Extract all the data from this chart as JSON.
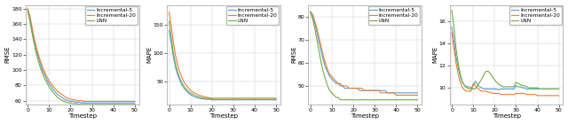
{
  "timesteps": [
    0,
    1,
    2,
    3,
    4,
    5,
    6,
    7,
    8,
    9,
    10,
    11,
    12,
    13,
    14,
    15,
    16,
    17,
    18,
    19,
    20,
    21,
    22,
    23,
    24,
    25,
    26,
    27,
    28,
    29,
    30,
    31,
    32,
    33,
    34,
    35,
    36,
    37,
    38,
    39,
    40,
    41,
    42,
    43,
    44,
    45,
    46,
    47,
    48,
    49,
    50
  ],
  "plot_a": {
    "ylabel": "RMSE",
    "xlabel": "Timestep",
    "ylim": [
      55,
      185
    ],
    "yticks": [
      60,
      80,
      100,
      120,
      140,
      160,
      180
    ],
    "inc5": [
      179,
      168,
      152,
      138,
      126,
      116,
      107,
      99,
      93,
      87,
      82,
      78,
      74,
      71,
      68,
      66,
      64,
      62,
      61,
      60,
      59,
      59,
      58,
      58,
      58,
      57,
      57,
      57,
      57,
      57,
      57,
      57,
      57,
      57,
      57,
      57,
      57,
      57,
      57,
      57,
      57,
      57,
      57,
      57,
      57,
      57,
      57,
      57,
      57,
      57,
      57
    ],
    "inc20": [
      180,
      171,
      156,
      142,
      130,
      120,
      111,
      103,
      97,
      91,
      86,
      82,
      78,
      75,
      72,
      70,
      68,
      66,
      64,
      63,
      62,
      61,
      61,
      60,
      60,
      60,
      59,
      59,
      59,
      59,
      59,
      59,
      59,
      59,
      59,
      59,
      59,
      59,
      59,
      59,
      59,
      59,
      59,
      59,
      59,
      59,
      59,
      59,
      59,
      59,
      59
    ],
    "lnn": [
      178,
      164,
      148,
      134,
      121,
      111,
      102,
      95,
      88,
      83,
      78,
      74,
      70,
      67,
      64,
      62,
      60,
      59,
      58,
      57,
      57,
      56,
      56,
      56,
      55,
      55,
      55,
      55,
      55,
      55,
      55,
      55,
      55,
      55,
      55,
      55,
      55,
      55,
      55,
      55,
      55,
      55,
      55,
      55,
      55,
      55,
      55,
      55,
      55,
      55,
      55
    ]
  },
  "plot_b": {
    "ylabel": "MAPE",
    "xlabel": "Timestep",
    "ylim": [
      10,
      185
    ],
    "yticks": [
      50,
      100,
      150
    ],
    "inc5": [
      140,
      118,
      93,
      75,
      62,
      52,
      44,
      38,
      34,
      30,
      27,
      25,
      23,
      22,
      21,
      20,
      20,
      19,
      19,
      19,
      18,
      18,
      18,
      18,
      18,
      18,
      18,
      18,
      18,
      18,
      18,
      18,
      18,
      18,
      18,
      18,
      18,
      18,
      18,
      18,
      18,
      18,
      18,
      18,
      18,
      18,
      18,
      18,
      18,
      18,
      18
    ],
    "inc20": [
      172,
      148,
      118,
      96,
      79,
      67,
      57,
      49,
      44,
      39,
      35,
      32,
      30,
      28,
      26,
      25,
      24,
      23,
      22,
      22,
      21,
      21,
      21,
      21,
      21,
      21,
      21,
      21,
      21,
      21,
      21,
      21,
      21,
      21,
      21,
      21,
      21,
      21,
      21,
      21,
      21,
      21,
      21,
      21,
      21,
      21,
      21,
      21,
      21,
      21,
      21
    ],
    "lnn": [
      156,
      128,
      100,
      81,
      67,
      56,
      48,
      42,
      37,
      33,
      30,
      28,
      26,
      24,
      23,
      22,
      21,
      21,
      20,
      20,
      19,
      19,
      19,
      19,
      19,
      19,
      19,
      19,
      19,
      19,
      19,
      19,
      19,
      19,
      19,
      19,
      19,
      19,
      19,
      19,
      19,
      19,
      19,
      19,
      19,
      19,
      19,
      19,
      19,
      19,
      19
    ]
  },
  "plot_c": {
    "ylabel": "RMSE",
    "xlabel": "Timestep",
    "ylim": [
      42,
      85
    ],
    "yticks": [
      50,
      60,
      70,
      80
    ],
    "inc5": [
      82,
      80,
      77,
      73,
      69,
      65,
      61,
      58,
      56,
      54,
      53,
      52,
      51,
      51,
      50,
      50,
      49,
      49,
      49,
      49,
      49,
      49,
      49,
      48,
      48,
      48,
      48,
      48,
      48,
      48,
      48,
      48,
      48,
      48,
      48,
      48,
      47,
      47,
      47,
      47,
      47,
      47,
      47,
      47,
      47,
      47,
      47,
      47,
      47,
      47,
      47
    ],
    "inc20": [
      82,
      81,
      78,
      75,
      71,
      67,
      63,
      60,
      57,
      55,
      54,
      53,
      52,
      51,
      51,
      50,
      50,
      50,
      49,
      49,
      49,
      49,
      49,
      49,
      49,
      48,
      48,
      48,
      48,
      48,
      48,
      48,
      48,
      47,
      47,
      47,
      47,
      47,
      47,
      47,
      46,
      46,
      46,
      46,
      46,
      46,
      46,
      46,
      46,
      46,
      46
    ],
    "lnn": [
      82,
      79,
      75,
      70,
      65,
      60,
      56,
      53,
      50,
      48,
      47,
      46,
      45,
      45,
      44,
      44,
      44,
      44,
      44,
      44,
      44,
      44,
      44,
      44,
      44,
      44,
      44,
      44,
      44,
      44,
      44,
      44,
      44,
      44,
      44,
      44,
      44,
      44,
      44,
      44,
      44,
      44,
      44,
      44,
      44,
      44,
      44,
      44,
      44,
      44,
      44
    ]
  },
  "plot_d": {
    "ylabel": "MAPE",
    "xlabel": "Timestep",
    "ylim": [
      8.5,
      17.5
    ],
    "yticks": [
      10,
      12,
      14,
      16
    ],
    "inc5": [
      15.5,
      14.2,
      12.8,
      11.8,
      11.0,
      10.5,
      10.2,
      10.1,
      10.1,
      10.0,
      10.2,
      10.6,
      10.3,
      10.1,
      10.0,
      9.9,
      9.9,
      9.9,
      9.9,
      9.9,
      9.9,
      9.9,
      9.8,
      9.9,
      9.9,
      9.9,
      9.9,
      9.9,
      9.9,
      9.9,
      10.2,
      10.1,
      10.1,
      10.0,
      10.0,
      9.9,
      9.9,
      9.9,
      9.9,
      9.9,
      9.9,
      9.9,
      9.9,
      9.9,
      9.9,
      9.9,
      9.9,
      9.9,
      9.9,
      9.9,
      9.9
    ],
    "inc20": [
      15.0,
      13.5,
      12.2,
      11.2,
      10.5,
      10.0,
      9.8,
      9.7,
      9.7,
      9.7,
      10.4,
      10.2,
      10.0,
      9.8,
      9.7,
      9.7,
      9.7,
      9.6,
      9.6,
      9.5,
      9.5,
      9.5,
      9.5,
      9.4,
      9.4,
      9.4,
      9.4,
      9.4,
      9.4,
      9.4,
      9.5,
      9.5,
      9.5,
      9.5,
      9.5,
      9.4,
      9.4,
      9.4,
      9.4,
      9.4,
      9.3,
      9.3,
      9.3,
      9.3,
      9.3,
      9.3,
      9.3,
      9.3,
      9.3,
      9.3,
      9.3
    ],
    "lnn": [
      17.0,
      15.5,
      13.5,
      12.2,
      11.2,
      10.5,
      10.2,
      10.0,
      9.9,
      9.9,
      9.9,
      9.9,
      10.2,
      10.5,
      10.8,
      11.2,
      11.5,
      11.5,
      11.3,
      11.0,
      10.7,
      10.5,
      10.3,
      10.2,
      10.1,
      10.1,
      10.1,
      10.1,
      10.1,
      10.1,
      10.5,
      10.4,
      10.3,
      10.2,
      10.2,
      10.1,
      10.0,
      10.0,
      10.0,
      10.0,
      10.0,
      9.9,
      9.9,
      9.9,
      9.9,
      9.9,
      9.9,
      9.9,
      9.9,
      9.9,
      9.9
    ]
  },
  "colors": {
    "inc5": "#5b9bd5",
    "inc20": "#ed7d31",
    "lnn": "#70ad47"
  },
  "legend_labels": [
    "Incremental-5",
    "Incremental-20",
    "LNN"
  ],
  "xticks": [
    0,
    10,
    20,
    30,
    40,
    50
  ],
  "linewidth": 0.8,
  "fontsize_label": 5,
  "fontsize_tick": 4.5,
  "fontsize_legend": 4.2
}
